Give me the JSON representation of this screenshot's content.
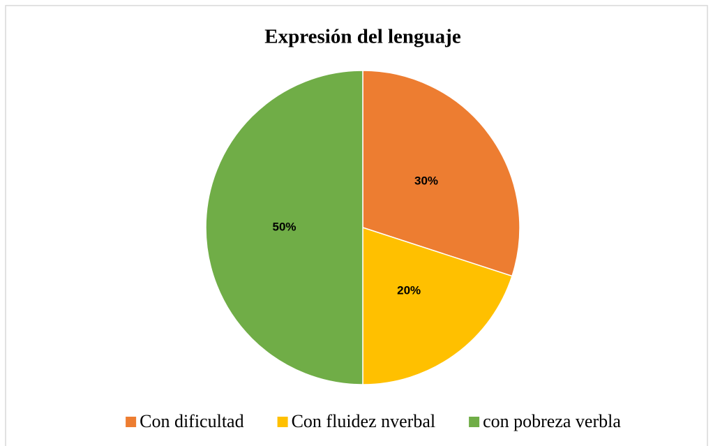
{
  "chart_data": {
    "type": "pie",
    "title": "Expresión del lenguaje",
    "categories": [
      "Con dificultad",
      "Con fluidez nverbal",
      "con pobreza verbla"
    ],
    "values": [
      30,
      20,
      50
    ],
    "value_labels": [
      "30%",
      "20%",
      "50%"
    ],
    "colors": [
      "#ED7D31",
      "#FFC000",
      "#70AD47"
    ],
    "legend": "bottom"
  }
}
